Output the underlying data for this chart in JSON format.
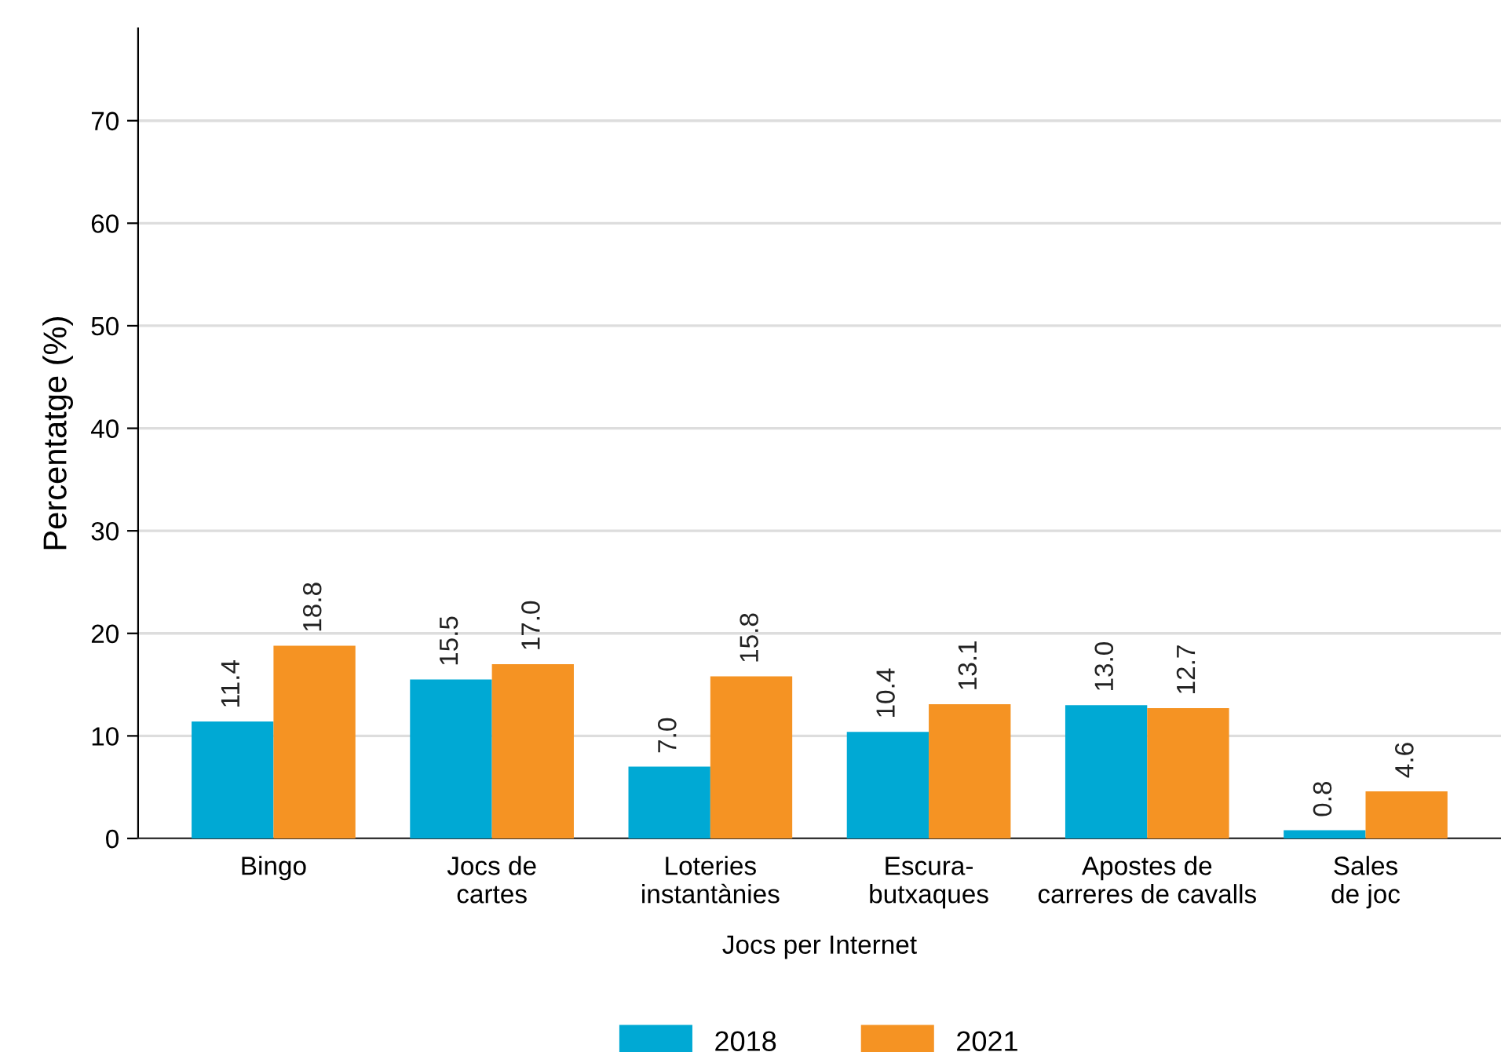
{
  "chart_data": {
    "type": "bar",
    "xlabel": "Jocs per Internet",
    "ylabel": "Percentatge (%)",
    "categories": [
      "Bingo",
      "Jocs de\ncartes",
      "Loteries\ninstantànies",
      "Escura-\nbutxaques",
      "Apostes de\ncarreres de cavalls",
      "Sales\nde joc"
    ],
    "series": [
      {
        "name": "2018",
        "color": "#00a9d4",
        "values": [
          11.4,
          15.5,
          7.0,
          10.4,
          13.0,
          0.8
        ],
        "value_labels": [
          "11.4",
          "15.5",
          "7.0",
          "10.4",
          "13.0",
          "0.8"
        ]
      },
      {
        "name": "2021",
        "color": "#f59323",
        "values": [
          18.8,
          17.0,
          15.8,
          13.1,
          12.7,
          4.6
        ],
        "value_labels": [
          "18.8",
          "17.0",
          "15.8",
          "13.1",
          "12.7",
          "4.6"
        ]
      }
    ],
    "ylim": [
      0,
      79
    ],
    "yticks": [
      0,
      10,
      20,
      30,
      40,
      50,
      60,
      70
    ],
    "grid": "y",
    "legend": "bottom"
  }
}
